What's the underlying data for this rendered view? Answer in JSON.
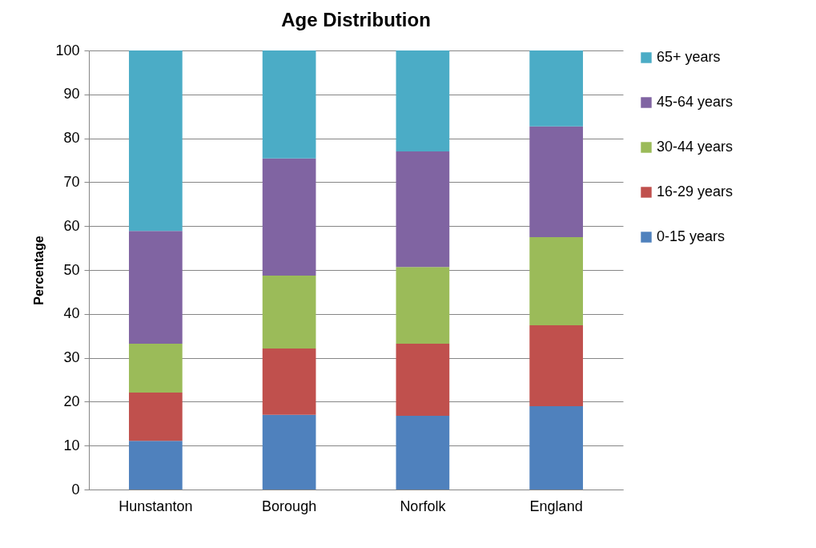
{
  "chart_data": {
    "type": "bar",
    "title": "Age Distribution",
    "ylabel": "Percentage",
    "stacked": true,
    "categories": [
      "Hunstanton",
      "Borough",
      "Norfolk",
      "England"
    ],
    "series": [
      {
        "name": "0-15 years",
        "color": "#4f81bd",
        "values": [
          11.1,
          17.0,
          16.8,
          19.0
        ]
      },
      {
        "name": "16-29 years",
        "color": "#c0504d",
        "values": [
          11.0,
          15.1,
          16.4,
          18.4
        ]
      },
      {
        "name": "30-44 years",
        "color": "#9bbb59",
        "values": [
          11.1,
          16.6,
          17.5,
          20.1
        ]
      },
      {
        "name": "45-64 years",
        "color": "#8064a2",
        "values": [
          25.7,
          26.7,
          26.3,
          25.2
        ]
      },
      {
        "name": "65+ years",
        "color": "#4bacc6",
        "values": [
          41.1,
          24.6,
          23.0,
          17.3
        ]
      }
    ],
    "ylim": [
      0,
      100
    ],
    "yticks": [
      0,
      10,
      20,
      30,
      40,
      50,
      60,
      70,
      80,
      90,
      100
    ],
    "grid": "y",
    "legend": "right"
  }
}
